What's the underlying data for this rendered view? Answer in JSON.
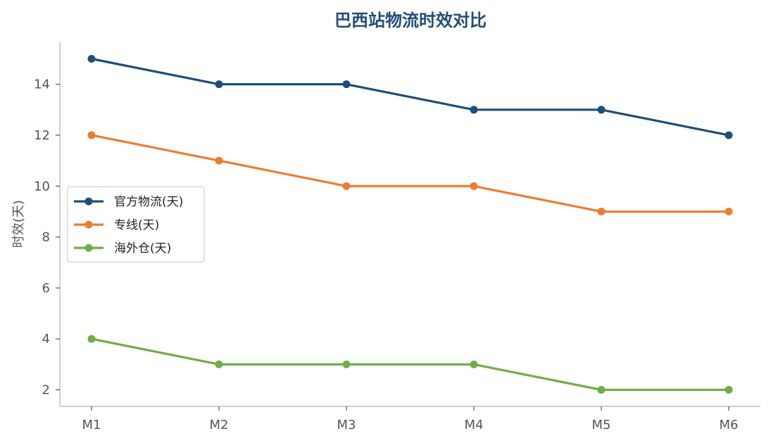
{
  "chart_data": {
    "type": "line",
    "title": "巴西站物流时效对比",
    "xlabel": "",
    "ylabel": "时效(天)",
    "categories": [
      "M1",
      "M2",
      "M3",
      "M4",
      "M5",
      "M6"
    ],
    "series": [
      {
        "name": "官方物流(天)",
        "color": "#1f4e79",
        "values": [
          15,
          14,
          14,
          13,
          13,
          12
        ]
      },
      {
        "name": "专线(天)",
        "color": "#ed7d31",
        "values": [
          12,
          11,
          10,
          10,
          9,
          9
        ]
      },
      {
        "name": "海外仓(天)",
        "color": "#70ad47",
        "values": [
          4,
          3,
          3,
          3,
          2,
          2
        ]
      }
    ],
    "yticks": [
      2,
      4,
      6,
      8,
      10,
      12,
      14
    ],
    "ylim": [
      1.35,
      15.65
    ],
    "grid": false,
    "legend_position": "center-left",
    "title_color": "#1f4e79"
  }
}
